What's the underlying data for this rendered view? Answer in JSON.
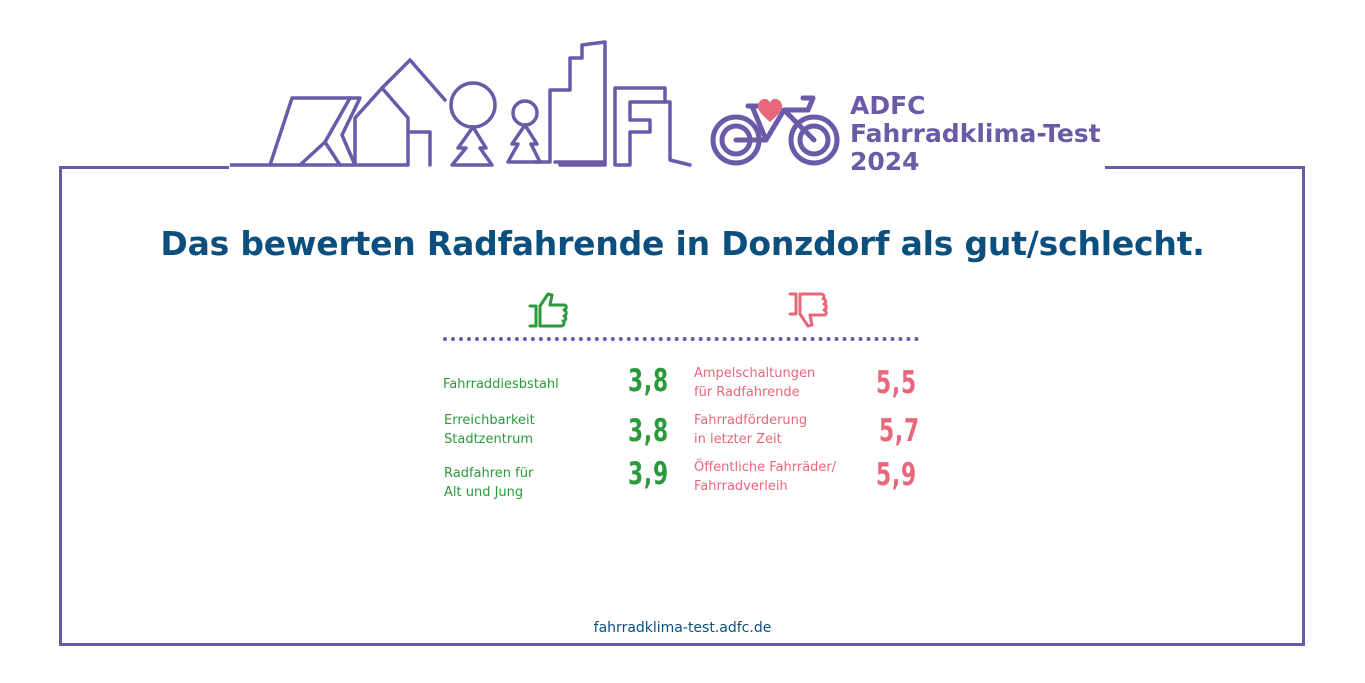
{
  "brand": {
    "line1": "ADFC",
    "line2": "Fahrradklima-Test",
    "line3": "2024",
    "color": "#6b5aa8",
    "heart_color": "#e8677b"
  },
  "title": "Das bewerten Radfahrende in Donzdorf  als gut/schlecht.",
  "icons": {
    "good": "thumbs-up-icon",
    "bad": "thumbs-down-icon"
  },
  "good_items": [
    {
      "label": "Fahrraddiesbstahl",
      "value": "3,8"
    },
    {
      "label": "Erreichbarkeit\nStadtzentrum",
      "value": "3,8"
    },
    {
      "label": "Radfahren für\nAlt und Jung",
      "value": "3,9"
    }
  ],
  "bad_items": [
    {
      "label": "Ampelschaltungen\nfür Radfahrende",
      "value": "5,5"
    },
    {
      "label": "Fahrradförderung\n in letzter Zeit",
      "value": "5,7"
    },
    {
      "label": "Öffentliche Fahrräder/\nFahrradverleih",
      "value": "5,9"
    }
  ],
  "colors": {
    "good": "#2a9a3c",
    "bad": "#e8677b",
    "title": "#0b4f7f",
    "frame": "#6b5aa8"
  },
  "footer": "fahrradklima-test.adfc.de"
}
